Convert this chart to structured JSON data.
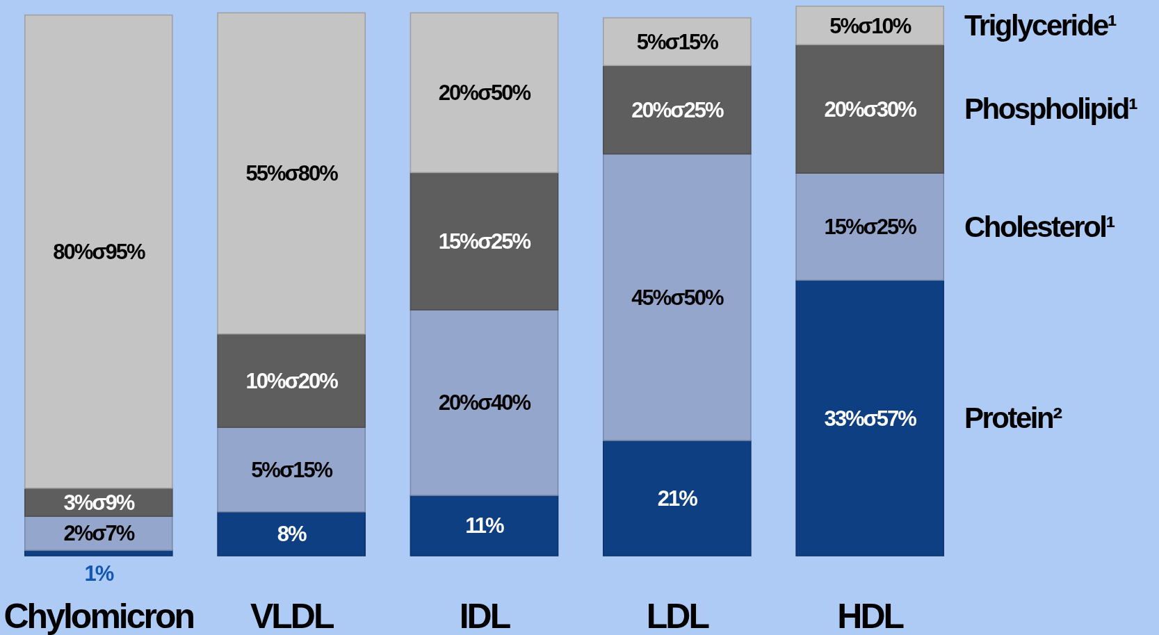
{
  "chart_data": {
    "type": "bar",
    "stacked": true,
    "categories": [
      "Chylomicron",
      "VLDL",
      "IDL",
      "LDL",
      "HDL"
    ],
    "series": [
      {
        "name": "Protein²",
        "color": "#0e3f82",
        "values": [
          1,
          8,
          11,
          21,
          50.2
        ],
        "value_labels": [
          "1%",
          "8%",
          "11%",
          "21%",
          null
        ]
      },
      {
        "name": "Cholesterol¹",
        "color": "#95a6cc",
        "values": [
          6.2,
          15.4,
          33.8,
          52.2,
          19.5
        ]
      },
      {
        "name": "Phospholipid¹",
        "color": "#5e5e5e",
        "values": [
          5.1,
          17,
          25,
          16.1,
          23.4
        ]
      },
      {
        "name": "Triglyceride¹",
        "color": "#c4c4c4",
        "values": [
          86.2,
          58.5,
          29.1,
          8.7,
          7
        ]
      }
    ],
    "annotations": [
      "33%σ57%",
      "2%σ7%",
      "5%σ15%",
      "20%σ40%",
      "45%σ50%",
      "15%σ25%",
      "3%σ9%",
      "10%σ20%",
      "15%σ25%",
      "20%σ25%",
      "20%σ30%",
      "80%σ95%",
      "55%σ80%",
      "20%σ50%",
      "5%σ15%",
      "5%σ10%"
    ]
  }
}
